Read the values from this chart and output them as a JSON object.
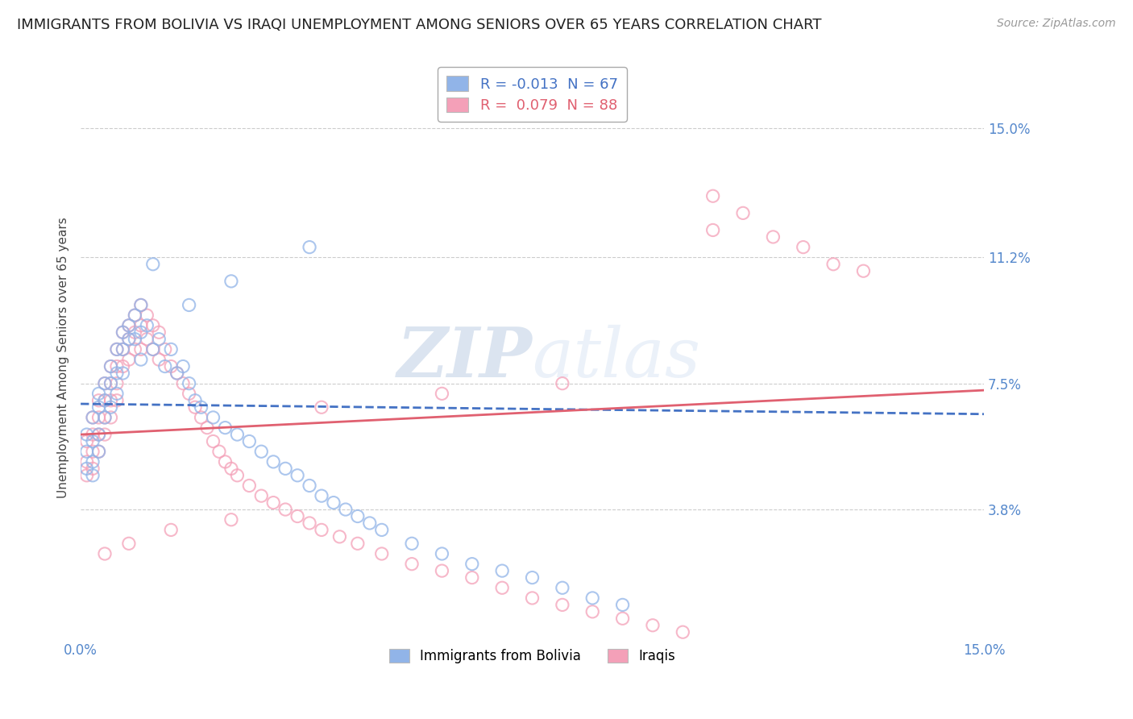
{
  "title": "IMMIGRANTS FROM BOLIVIA VS IRAQI UNEMPLOYMENT AMONG SENIORS OVER 65 YEARS CORRELATION CHART",
  "source": "Source: ZipAtlas.com",
  "ylabel": "Unemployment Among Seniors over 65 years",
  "xlabel": "",
  "xlim": [
    0.0,
    0.15
  ],
  "ylim": [
    0.0,
    0.165
  ],
  "yticks": [
    0.038,
    0.075,
    0.112,
    0.15
  ],
  "ytick_labels": [
    "3.8%",
    "7.5%",
    "11.2%",
    "15.0%"
  ],
  "xticks": [
    0.0,
    0.15
  ],
  "xtick_labels": [
    "0.0%",
    "15.0%"
  ],
  "legend_entries": [
    {
      "label": "R = -0.013  N = 67",
      "color": "#91b4e8"
    },
    {
      "label": "R =  0.079  N = 88",
      "color": "#f4a0b8"
    }
  ],
  "legend_name_1": "Immigrants from Bolivia",
  "legend_name_2": "Iraqis",
  "watermark": "ZIPatlas",
  "bolivia_color": "#91b4e8",
  "iraq_color": "#f4a0b8",
  "bolivia_line_color": "#4472c4",
  "iraq_line_color": "#e06070",
  "background_color": "#ffffff",
  "grid_color": "#aaaaaa",
  "title_fontsize": 13,
  "axis_label_fontsize": 11,
  "tick_label_color": "#5588cc",
  "bolivia_R": -0.013,
  "bolivia_N": 67,
  "iraq_R": 0.079,
  "iraq_N": 88,
  "bolivia_line_x0": 0.0,
  "bolivia_line_y0": 0.069,
  "bolivia_line_x1": 0.15,
  "bolivia_line_y1": 0.066,
  "iraq_line_x0": 0.0,
  "iraq_line_y0": 0.06,
  "iraq_line_x1": 0.15,
  "iraq_line_y1": 0.073,
  "bolivia_scatter_x": [
    0.001,
    0.001,
    0.001,
    0.002,
    0.002,
    0.002,
    0.002,
    0.003,
    0.003,
    0.003,
    0.003,
    0.004,
    0.004,
    0.004,
    0.005,
    0.005,
    0.005,
    0.006,
    0.006,
    0.006,
    0.007,
    0.007,
    0.007,
    0.008,
    0.008,
    0.009,
    0.009,
    0.01,
    0.01,
    0.01,
    0.011,
    0.012,
    0.013,
    0.014,
    0.015,
    0.016,
    0.017,
    0.018,
    0.019,
    0.02,
    0.022,
    0.024,
    0.026,
    0.028,
    0.03,
    0.032,
    0.034,
    0.036,
    0.038,
    0.04,
    0.042,
    0.044,
    0.046,
    0.048,
    0.05,
    0.055,
    0.06,
    0.065,
    0.07,
    0.075,
    0.08,
    0.085,
    0.09,
    0.038,
    0.025,
    0.018,
    0.012
  ],
  "bolivia_scatter_y": [
    0.06,
    0.055,
    0.05,
    0.065,
    0.058,
    0.052,
    0.048,
    0.072,
    0.068,
    0.06,
    0.055,
    0.075,
    0.07,
    0.065,
    0.08,
    0.075,
    0.068,
    0.085,
    0.078,
    0.072,
    0.09,
    0.085,
    0.078,
    0.092,
    0.088,
    0.095,
    0.088,
    0.098,
    0.09,
    0.082,
    0.092,
    0.085,
    0.088,
    0.08,
    0.085,
    0.078,
    0.08,
    0.075,
    0.07,
    0.068,
    0.065,
    0.062,
    0.06,
    0.058,
    0.055,
    0.052,
    0.05,
    0.048,
    0.045,
    0.042,
    0.04,
    0.038,
    0.036,
    0.034,
    0.032,
    0.028,
    0.025,
    0.022,
    0.02,
    0.018,
    0.015,
    0.012,
    0.01,
    0.115,
    0.105,
    0.098,
    0.11
  ],
  "iraq_scatter_x": [
    0.001,
    0.001,
    0.001,
    0.002,
    0.002,
    0.002,
    0.002,
    0.003,
    0.003,
    0.003,
    0.003,
    0.004,
    0.004,
    0.004,
    0.004,
    0.005,
    0.005,
    0.005,
    0.005,
    0.006,
    0.006,
    0.006,
    0.006,
    0.007,
    0.007,
    0.007,
    0.008,
    0.008,
    0.008,
    0.009,
    0.009,
    0.009,
    0.01,
    0.01,
    0.01,
    0.011,
    0.011,
    0.012,
    0.012,
    0.013,
    0.013,
    0.014,
    0.015,
    0.016,
    0.017,
    0.018,
    0.019,
    0.02,
    0.021,
    0.022,
    0.023,
    0.024,
    0.025,
    0.026,
    0.028,
    0.03,
    0.032,
    0.034,
    0.036,
    0.038,
    0.04,
    0.043,
    0.046,
    0.05,
    0.055,
    0.06,
    0.065,
    0.07,
    0.075,
    0.08,
    0.085,
    0.09,
    0.095,
    0.1,
    0.105,
    0.11,
    0.115,
    0.12,
    0.125,
    0.13,
    0.105,
    0.08,
    0.06,
    0.04,
    0.025,
    0.015,
    0.008,
    0.004
  ],
  "iraq_scatter_y": [
    0.058,
    0.052,
    0.048,
    0.065,
    0.06,
    0.055,
    0.05,
    0.07,
    0.065,
    0.06,
    0.055,
    0.075,
    0.07,
    0.065,
    0.06,
    0.08,
    0.075,
    0.07,
    0.065,
    0.085,
    0.08,
    0.075,
    0.07,
    0.09,
    0.085,
    0.08,
    0.092,
    0.088,
    0.082,
    0.095,
    0.09,
    0.085,
    0.098,
    0.092,
    0.085,
    0.095,
    0.088,
    0.092,
    0.085,
    0.09,
    0.082,
    0.085,
    0.08,
    0.078,
    0.075,
    0.072,
    0.068,
    0.065,
    0.062,
    0.058,
    0.055,
    0.052,
    0.05,
    0.048,
    0.045,
    0.042,
    0.04,
    0.038,
    0.036,
    0.034,
    0.032,
    0.03,
    0.028,
    0.025,
    0.022,
    0.02,
    0.018,
    0.015,
    0.012,
    0.01,
    0.008,
    0.006,
    0.004,
    0.002,
    0.12,
    0.125,
    0.118,
    0.115,
    0.11,
    0.108,
    0.13,
    0.075,
    0.072,
    0.068,
    0.035,
    0.032,
    0.028,
    0.025
  ]
}
